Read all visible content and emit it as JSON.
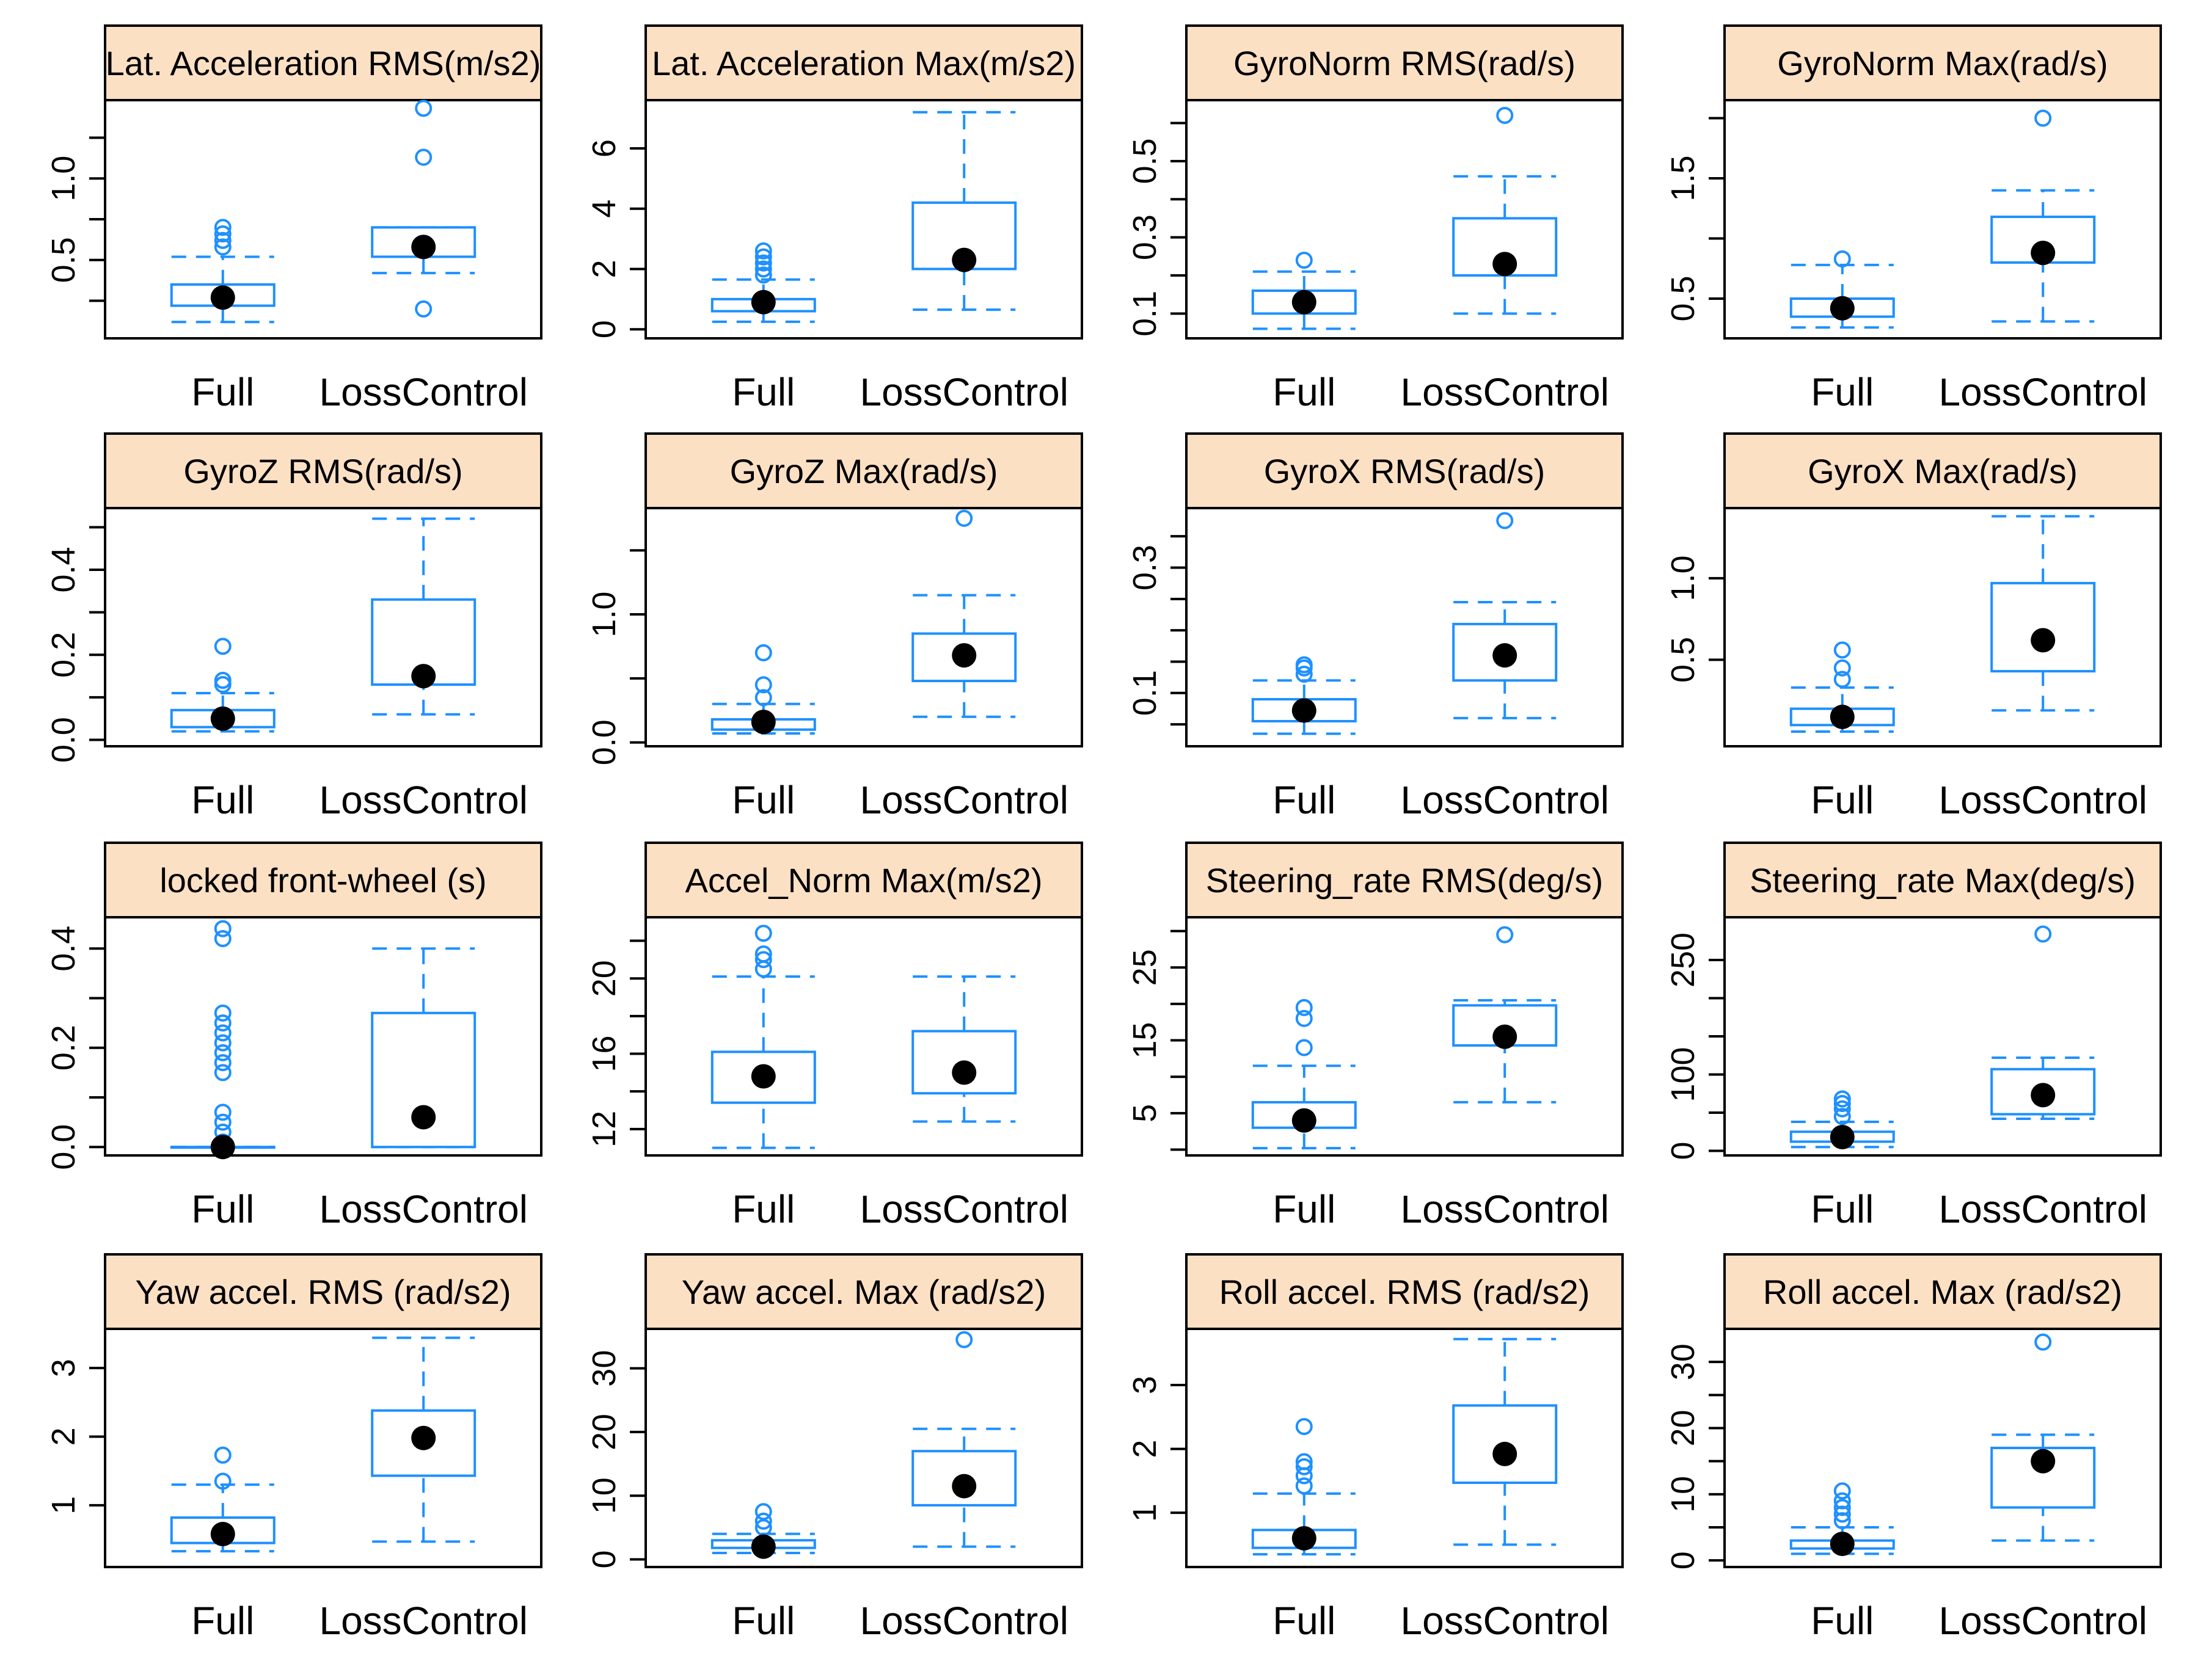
{
  "colors": {
    "box": "#1E90FF",
    "strip_fill": "#FCE0C4",
    "frame": "#000000",
    "median_dot": "#000000",
    "background": "#FFFFFF"
  },
  "chart_data": [
    {
      "type": "box",
      "title": "Lat. Acceleration RMS(m/s2)",
      "categories": [
        "Full",
        "LossControl"
      ],
      "ylim": [
        0.02,
        1.48
      ],
      "yticks": [
        0.5,
        1.0
      ],
      "ytick_labels": [
        "0.5",
        "1.0"
      ],
      "ytick_marks": [
        0.25,
        0.5,
        0.75,
        1.0,
        1.25
      ],
      "series": [
        {
          "name": "Full",
          "whisker_low": 0.12,
          "q1": 0.22,
          "median": 0.27,
          "q3": 0.35,
          "whisker_high": 0.52,
          "outliers": [
            0.58,
            0.62,
            0.66,
            0.7
          ]
        },
        {
          "name": "LossControl",
          "whisker_low": 0.42,
          "q1": 0.52,
          "median": 0.58,
          "q3": 0.7,
          "whisker_high": 0.7,
          "outliers": [
            0.2,
            1.13,
            1.43
          ]
        }
      ]
    },
    {
      "type": "box",
      "title": "Lat. Acceleration Max(m/s2)",
      "categories": [
        "Full",
        "LossControl"
      ],
      "ylim": [
        -0.3,
        7.6
      ],
      "yticks": [
        0,
        2,
        4,
        6
      ],
      "ytick_labels": [
        "0",
        "2",
        "4",
        "6"
      ],
      "ytick_marks": [
        0,
        2,
        4,
        6
      ],
      "series": [
        {
          "name": "Full",
          "whisker_low": 0.25,
          "q1": 0.6,
          "median": 0.9,
          "q3": 1.0,
          "whisker_high": 1.65,
          "outliers": [
            1.8,
            2.0,
            2.2,
            2.4,
            2.6
          ]
        },
        {
          "name": "LossControl",
          "whisker_low": 0.65,
          "q1": 2.0,
          "median": 2.3,
          "q3": 4.2,
          "whisker_high": 7.2,
          "outliers": []
        }
      ]
    },
    {
      "type": "box",
      "title": "GyroNorm RMS(rad/s)",
      "categories": [
        "Full",
        "LossControl"
      ],
      "ylim": [
        0.035,
        0.66
      ],
      "yticks": [
        0.1,
        0.3,
        0.5
      ],
      "ytick_labels": [
        "0.1",
        "0.3",
        "0.5"
      ],
      "ytick_marks": [
        0.1,
        0.2,
        0.3,
        0.4,
        0.5,
        0.6
      ],
      "series": [
        {
          "name": "Full",
          "whisker_low": 0.06,
          "q1": 0.1,
          "median": 0.13,
          "q3": 0.16,
          "whisker_high": 0.21,
          "outliers": [
            0.24
          ]
        },
        {
          "name": "LossControl",
          "whisker_low": 0.1,
          "q1": 0.2,
          "median": 0.23,
          "q3": 0.35,
          "whisker_high": 0.46,
          "outliers": [
            0.62
          ]
        }
      ]
    },
    {
      "type": "box",
      "title": "GyroNorm Max(rad/s)",
      "categories": [
        "Full",
        "LossControl"
      ],
      "ylim": [
        0.17,
        2.15
      ],
      "yticks": [
        0.5,
        1.5
      ],
      "ytick_labels": [
        "0.5",
        "1.5"
      ],
      "ytick_marks": [
        0.5,
        1.0,
        1.5,
        2.0
      ],
      "series": [
        {
          "name": "Full",
          "whisker_low": 0.26,
          "q1": 0.35,
          "median": 0.42,
          "q3": 0.5,
          "whisker_high": 0.78,
          "outliers": [
            0.83
          ]
        },
        {
          "name": "LossControl",
          "whisker_low": 0.31,
          "q1": 0.8,
          "median": 0.88,
          "q3": 1.18,
          "whisker_high": 1.4,
          "outliers": [
            2.0
          ]
        }
      ]
    },
    {
      "type": "box",
      "title": "GyroZ RMS(rad/s)",
      "categories": [
        "Full",
        "LossControl"
      ],
      "ylim": [
        -0.015,
        0.545
      ],
      "yticks": [
        0.0,
        0.2,
        0.4
      ],
      "ytick_labels": [
        "0.0",
        "0.2",
        "0.4"
      ],
      "ytick_marks": [
        0,
        0.1,
        0.2,
        0.3,
        0.4,
        0.5
      ],
      "series": [
        {
          "name": "Full",
          "whisker_low": 0.02,
          "q1": 0.03,
          "median": 0.05,
          "q3": 0.07,
          "whisker_high": 0.11,
          "outliers": [
            0.13,
            0.14,
            0.22
          ]
        },
        {
          "name": "LossControl",
          "whisker_low": 0.06,
          "q1": 0.13,
          "median": 0.15,
          "q3": 0.33,
          "whisker_high": 0.52,
          "outliers": []
        }
      ]
    },
    {
      "type": "box",
      "title": "GyroZ Max(rad/s)",
      "categories": [
        "Full",
        "LossControl"
      ],
      "ylim": [
        -0.03,
        1.83
      ],
      "yticks": [
        0.0,
        1.0
      ],
      "ytick_labels": [
        "0.0",
        "1.0"
      ],
      "ytick_marks": [
        0,
        0.5,
        1.0,
        1.5
      ],
      "series": [
        {
          "name": "Full",
          "whisker_low": 0.07,
          "q1": 0.1,
          "median": 0.16,
          "q3": 0.18,
          "whisker_high": 0.3,
          "outliers": [
            0.35,
            0.45,
            0.7
          ]
        },
        {
          "name": "LossControl",
          "whisker_low": 0.2,
          "q1": 0.48,
          "median": 0.68,
          "q3": 0.85,
          "whisker_high": 1.15,
          "outliers": [
            1.75
          ]
        }
      ]
    },
    {
      "type": "box",
      "title": "GyroX RMS(rad/s)",
      "categories": [
        "Full",
        "LossControl"
      ],
      "ylim": [
        0.015,
        0.395
      ],
      "yticks": [
        0.1,
        0.3
      ],
      "ytick_labels": [
        "0.1",
        "0.3"
      ],
      "ytick_marks": [
        0.05,
        0.1,
        0.15,
        0.2,
        0.25,
        0.3,
        0.35
      ],
      "series": [
        {
          "name": "Full",
          "whisker_low": 0.035,
          "q1": 0.055,
          "median": 0.072,
          "q3": 0.09,
          "whisker_high": 0.12,
          "outliers": [
            0.13,
            0.14,
            0.145
          ]
        },
        {
          "name": "LossControl",
          "whisker_low": 0.06,
          "q1": 0.12,
          "median": 0.16,
          "q3": 0.21,
          "whisker_high": 0.245,
          "outliers": [
            0.375
          ]
        }
      ]
    },
    {
      "type": "box",
      "title": "GyroX Max(rad/s)",
      "categories": [
        "Full",
        "LossControl"
      ],
      "ylim": [
        -0.03,
        1.43
      ],
      "yticks": [
        0.5,
        1.0
      ],
      "ytick_labels": [
        "0.5",
        "1.0"
      ],
      "ytick_marks": [
        0.5,
        1.0
      ],
      "series": [
        {
          "name": "Full",
          "whisker_low": 0.06,
          "q1": 0.1,
          "median": 0.15,
          "q3": 0.2,
          "whisker_high": 0.33,
          "outliers": [
            0.38,
            0.45,
            0.56
          ]
        },
        {
          "name": "LossControl",
          "whisker_low": 0.19,
          "q1": 0.43,
          "median": 0.62,
          "q3": 0.97,
          "whisker_high": 1.38,
          "outliers": []
        }
      ]
    },
    {
      "type": "box",
      "title": "locked front-wheel (s)",
      "categories": [
        "Full",
        "LossControl"
      ],
      "ylim": [
        -0.017,
        0.463
      ],
      "yticks": [
        0.0,
        0.2,
        0.4
      ],
      "ytick_labels": [
        "0.0",
        "0.2",
        "0.4"
      ],
      "ytick_marks": [
        0,
        0.1,
        0.2,
        0.3,
        0.4
      ],
      "series": [
        {
          "name": "Full",
          "whisker_low": 0.0,
          "q1": 0.0,
          "median": 0.0,
          "q3": 0.0,
          "whisker_high": 0.0,
          "outliers": [
            0.01,
            0.03,
            0.05,
            0.07,
            0.15,
            0.17,
            0.19,
            0.21,
            0.23,
            0.25,
            0.27,
            0.42,
            0.44
          ]
        },
        {
          "name": "LossControl",
          "whisker_low": 0.0,
          "q1": 0.0,
          "median": 0.06,
          "q3": 0.27,
          "whisker_high": 0.4,
          "outliers": []
        }
      ]
    },
    {
      "type": "box",
      "title": "Accel_Norm Max(m/s2)",
      "categories": [
        "Full",
        "LossControl"
      ],
      "ylim": [
        10.6,
        23.25
      ],
      "yticks": [
        12,
        16,
        20
      ],
      "ytick_labels": [
        "12",
        "16",
        "20"
      ],
      "ytick_marks": [
        12,
        14,
        16,
        18,
        20,
        22
      ],
      "series": [
        {
          "name": "Full",
          "whisker_low": 11.0,
          "q1": 13.4,
          "median": 14.8,
          "q3": 16.1,
          "whisker_high": 20.1,
          "outliers": [
            20.5,
            21.0,
            21.3,
            22.4
          ]
        },
        {
          "name": "LossControl",
          "whisker_low": 12.4,
          "q1": 13.9,
          "median": 15.0,
          "q3": 17.2,
          "whisker_high": 20.1,
          "outliers": []
        }
      ]
    },
    {
      "type": "box",
      "title": "Steering_rate RMS(deg/s)",
      "categories": [
        "Full",
        "LossControl"
      ],
      "ylim": [
        -0.8,
        31.9
      ],
      "yticks": [
        5,
        15,
        25
      ],
      "ytick_labels": [
        "5",
        "15",
        "25"
      ],
      "ytick_marks": [
        0,
        5,
        10,
        15,
        20,
        25,
        30
      ],
      "series": [
        {
          "name": "Full",
          "whisker_low": 0.2,
          "q1": 3.0,
          "median": 4.0,
          "q3": 6.5,
          "whisker_high": 11.5,
          "outliers": [
            14.0,
            18.0,
            19.5
          ]
        },
        {
          "name": "LossControl",
          "whisker_low": 6.5,
          "q1": 14.3,
          "median": 15.5,
          "q3": 19.8,
          "whisker_high": 20.5,
          "outliers": [
            29.5
          ]
        }
      ]
    },
    {
      "type": "box",
      "title": "Steering_rate Max(deg/s)",
      "categories": [
        "Full",
        "LossControl"
      ],
      "ylim": [
        -6,
        306
      ],
      "yticks": [
        0,
        100,
        250
      ],
      "ytick_labels": [
        "0",
        "100",
        "250"
      ],
      "ytick_marks": [
        0,
        50,
        100,
        150,
        200,
        250
      ],
      "series": [
        {
          "name": "Full",
          "whisker_low": 5,
          "q1": 12,
          "median": 18,
          "q3": 25,
          "whisker_high": 38,
          "outliers": [
            45,
            55,
            62,
            68
          ]
        },
        {
          "name": "LossControl",
          "whisker_low": 42,
          "q1": 48,
          "median": 73,
          "q3": 107,
          "whisker_high": 122,
          "outliers": [
            284
          ]
        }
      ]
    },
    {
      "type": "box",
      "title": "Yaw accel. RMS (rad/s2)",
      "categories": [
        "Full",
        "LossControl"
      ],
      "ylim": [
        0.1,
        3.57
      ],
      "yticks": [
        1,
        2,
        3
      ],
      "ytick_labels": [
        "1",
        "2",
        "3"
      ],
      "ytick_marks": [
        1,
        2,
        3
      ],
      "series": [
        {
          "name": "Full",
          "whisker_low": 0.33,
          "q1": 0.45,
          "median": 0.58,
          "q3": 0.82,
          "whisker_high": 1.3,
          "outliers": [
            1.35,
            1.73
          ]
        },
        {
          "name": "LossControl",
          "whisker_low": 0.47,
          "q1": 1.43,
          "median": 1.98,
          "q3": 2.38,
          "whisker_high": 3.44,
          "outliers": []
        }
      ]
    },
    {
      "type": "box",
      "title": "Yaw accel. Max (rad/s2)",
      "categories": [
        "Full",
        "LossControl"
      ],
      "ylim": [
        -1.2,
        36.2
      ],
      "yticks": [
        0,
        10,
        20,
        30
      ],
      "ytick_labels": [
        "0",
        "10",
        "20",
        "30"
      ],
      "ytick_marks": [
        0,
        10,
        20,
        30
      ],
      "series": [
        {
          "name": "Full",
          "whisker_low": 1.0,
          "q1": 1.8,
          "median": 2.0,
          "q3": 3.0,
          "whisker_high": 4.0,
          "outliers": [
            5.0,
            6.0,
            7.5
          ]
        },
        {
          "name": "LossControl",
          "whisker_low": 2.0,
          "q1": 8.5,
          "median": 11.5,
          "q3": 17.0,
          "whisker_high": 20.5,
          "outliers": [
            34.5
          ]
        }
      ]
    },
    {
      "type": "box",
      "title": "Roll accel. RMS (rad/s2)",
      "categories": [
        "Full",
        "LossControl"
      ],
      "ylim": [
        0.15,
        3.88
      ],
      "yticks": [
        1,
        2,
        3
      ],
      "ytick_labels": [
        "1",
        "2",
        "3"
      ],
      "ytick_marks": [
        1,
        2,
        3
      ],
      "series": [
        {
          "name": "Full",
          "whisker_low": 0.35,
          "q1": 0.45,
          "median": 0.6,
          "q3": 0.73,
          "whisker_high": 1.3,
          "outliers": [
            1.42,
            1.58,
            1.72,
            1.8,
            2.35
          ]
        },
        {
          "name": "LossControl",
          "whisker_low": 0.5,
          "q1": 1.47,
          "median": 1.92,
          "q3": 2.68,
          "whisker_high": 3.72,
          "outliers": []
        }
      ]
    },
    {
      "type": "box",
      "title": "Roll accel. Max (rad/s2)",
      "categories": [
        "Full",
        "LossControl"
      ],
      "ylim": [
        -1.0,
        35.0
      ],
      "yticks": [
        0,
        10,
        20,
        30
      ],
      "ytick_labels": [
        "0",
        "10",
        "20",
        "30"
      ],
      "ytick_marks": [
        0,
        5,
        10,
        15,
        20,
        25,
        30
      ],
      "series": [
        {
          "name": "Full",
          "whisker_low": 1.0,
          "q1": 1.8,
          "median": 2.5,
          "q3": 3.0,
          "whisker_high": 5.0,
          "outliers": [
            6.0,
            7.0,
            8.0,
            9.0,
            10.5
          ]
        },
        {
          "name": "LossControl",
          "whisker_low": 3.0,
          "q1": 8.0,
          "median": 15.0,
          "q3": 17.0,
          "whisker_high": 19.0,
          "outliers": [
            33.0
          ]
        }
      ]
    }
  ]
}
